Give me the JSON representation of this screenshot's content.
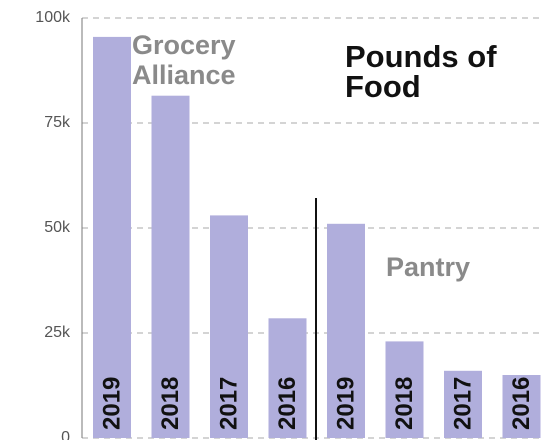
{
  "chart_data": {
    "type": "bar",
    "title": "Pounds of Food",
    "annotations": [
      "Grocery Alliance",
      "Pantry"
    ],
    "categories": [
      "2019",
      "2018",
      "2017",
      "2016",
      "2019",
      "2018",
      "2017",
      "2016"
    ],
    "values": [
      95500,
      81500,
      53000,
      28500,
      51000,
      23000,
      16000,
      15000
    ],
    "color": "#b0aedc",
    "ylim": [
      0,
      100000
    ],
    "yticks": [
      0,
      {
        "value": 25000,
        "label": "25k"
      },
      {
        "value": 50000,
        "label": "50k"
      },
      {
        "value": 75000,
        "label": "75k"
      },
      {
        "value": 100000,
        "label": "100k"
      }
    ],
    "grid": true
  }
}
